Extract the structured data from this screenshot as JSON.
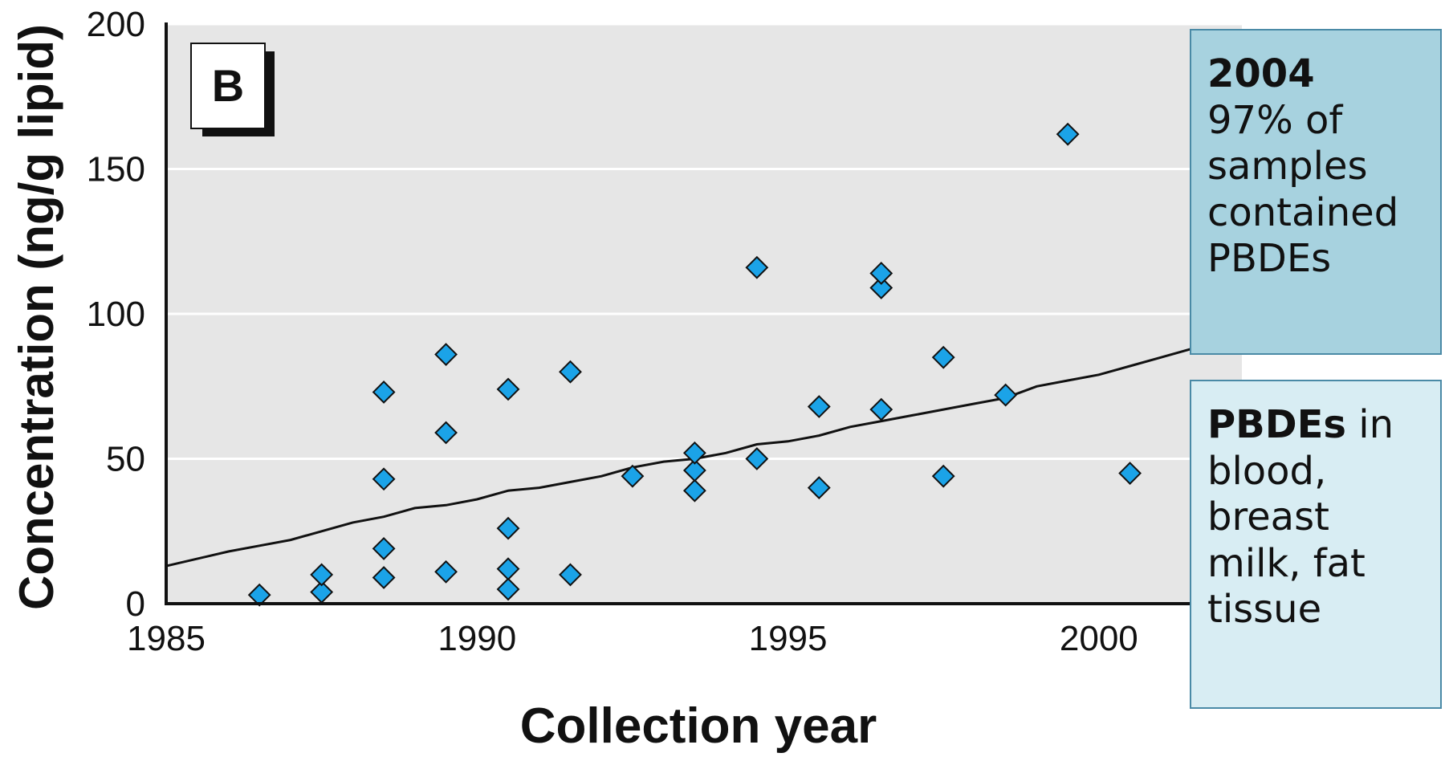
{
  "chart_data": {
    "type": "scatter",
    "panel_label": "B",
    "xlabel": "Collection year",
    "ylabel": "Concentration (ng/g lipid)",
    "xlim": [
      1985,
      2002.3
    ],
    "ylim": [
      0,
      200
    ],
    "x_ticks": [
      "1985",
      "1990",
      "1995",
      "2000"
    ],
    "x_tick_values": [
      1985,
      1990,
      1995,
      2000
    ],
    "y_ticks": [
      "0",
      "50",
      "100",
      "150",
      "200"
    ],
    "y_tick_values": [
      0,
      50,
      100,
      150,
      200
    ],
    "grid": "horizontal",
    "background_color": "#e6e6e6",
    "marker": "diamond",
    "marker_color": "#1ba3e8",
    "points": [
      {
        "x": 1986.5,
        "y": 3
      },
      {
        "x": 1987.5,
        "y": 4
      },
      {
        "x": 1987.5,
        "y": 10
      },
      {
        "x": 1988.5,
        "y": 9
      },
      {
        "x": 1988.5,
        "y": 19
      },
      {
        "x": 1988.5,
        "y": 43
      },
      {
        "x": 1988.5,
        "y": 73
      },
      {
        "x": 1989.5,
        "y": 11
      },
      {
        "x": 1989.5,
        "y": 59
      },
      {
        "x": 1989.5,
        "y": 86
      },
      {
        "x": 1990.5,
        "y": 5
      },
      {
        "x": 1990.5,
        "y": 12
      },
      {
        "x": 1990.5,
        "y": 26
      },
      {
        "x": 1990.5,
        "y": 74
      },
      {
        "x": 1991.5,
        "y": 10
      },
      {
        "x": 1991.5,
        "y": 80
      },
      {
        "x": 1992.5,
        "y": 44
      },
      {
        "x": 1993.5,
        "y": 39
      },
      {
        "x": 1993.5,
        "y": 46
      },
      {
        "x": 1993.5,
        "y": 52
      },
      {
        "x": 1994.5,
        "y": 50
      },
      {
        "x": 1994.5,
        "y": 116
      },
      {
        "x": 1995.5,
        "y": 40
      },
      {
        "x": 1995.5,
        "y": 68
      },
      {
        "x": 1996.5,
        "y": 67
      },
      {
        "x": 1996.5,
        "y": 109
      },
      {
        "x": 1996.5,
        "y": 114
      },
      {
        "x": 1997.5,
        "y": 44
      },
      {
        "x": 1997.5,
        "y": 85
      },
      {
        "x": 1998.5,
        "y": 72
      },
      {
        "x": 1999.5,
        "y": 162
      },
      {
        "x": 2000.5,
        "y": 45
      }
    ],
    "trend_line": [
      [
        1985,
        13
      ],
      [
        1986,
        18
      ],
      [
        1986.5,
        20
      ],
      [
        1987,
        22
      ],
      [
        1987.5,
        25
      ],
      [
        1988,
        28
      ],
      [
        1988.5,
        30
      ],
      [
        1989,
        33
      ],
      [
        1989.5,
        34
      ],
      [
        1990,
        36
      ],
      [
        1990.5,
        39
      ],
      [
        1991,
        40
      ],
      [
        1991.5,
        42
      ],
      [
        1992,
        44
      ],
      [
        1992.5,
        47
      ],
      [
        1993,
        49
      ],
      [
        1993.5,
        50
      ],
      [
        1994,
        52
      ],
      [
        1994.5,
        55
      ],
      [
        1995,
        56
      ],
      [
        1995.5,
        58
      ],
      [
        1996,
        61
      ],
      [
        1996.5,
        63
      ],
      [
        1997,
        65
      ],
      [
        1997.5,
        67
      ],
      [
        1998,
        69
      ],
      [
        1998.5,
        71
      ],
      [
        1999,
        75
      ],
      [
        1999.5,
        77
      ],
      [
        2000,
        79
      ],
      [
        2000.5,
        82
      ],
      [
        2001,
        85
      ],
      [
        2001.5,
        88
      ]
    ]
  },
  "callouts": {
    "box_2004": {
      "heading": "2004",
      "line1": "97% of",
      "line2": "samples",
      "line3": "contained",
      "line4": "PBDEs"
    },
    "box_pbde": {
      "bold": "PBDEs",
      "rest1": " in",
      "line2": "blood,",
      "line3": "breast",
      "line4": "milk, fat",
      "line5": "tissue"
    }
  }
}
